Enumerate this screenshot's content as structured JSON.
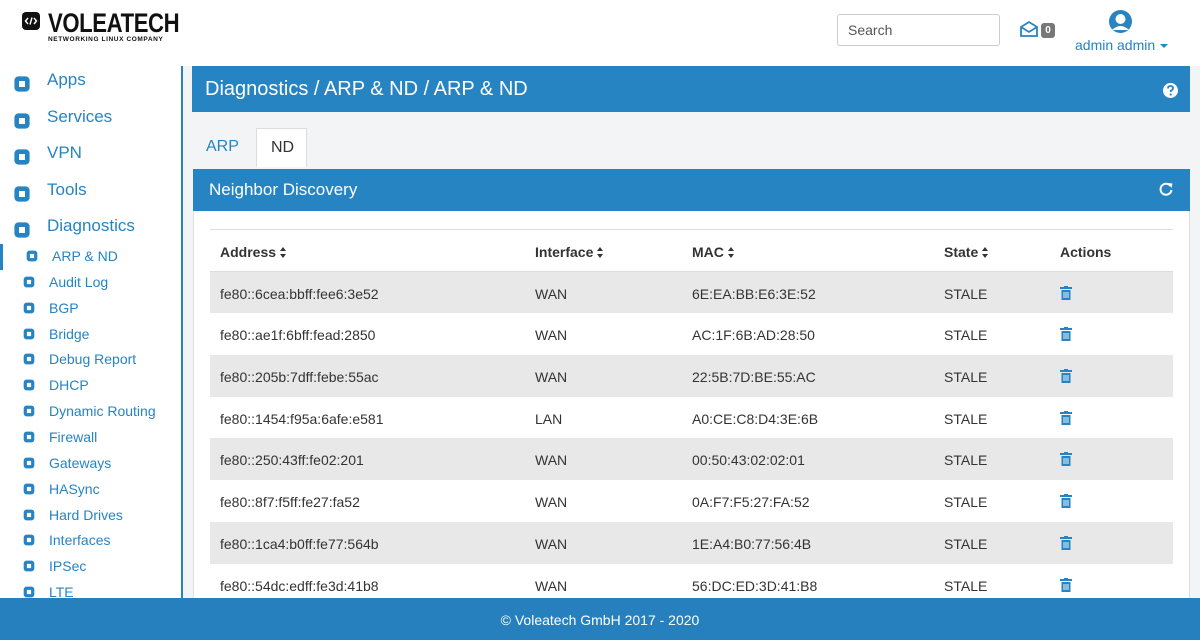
{
  "header": {
    "logo": "VOLEATECH",
    "tagline": "NETWORKING LINUX COMPANY",
    "search_placeholder": "Search",
    "mail_count": "0",
    "user": "admin admin"
  },
  "sidebar": {
    "menu": [
      "Apps",
      "Services",
      "VPN",
      "Tools",
      "Diagnostics"
    ],
    "submenu": [
      "ARP & ND",
      "Audit Log",
      "BGP",
      "Bridge",
      "Debug Report",
      "DHCP",
      "Dynamic Routing",
      "Firewall",
      "Gateways",
      "HASync",
      "Hard Drives",
      "Interfaces",
      "IPSec",
      "LTE"
    ]
  },
  "breadcrumb": "Diagnostics / ARP & ND / ARP & ND",
  "tabs": [
    "ARP",
    "ND"
  ],
  "panel": {
    "title": "Neighbor Discovery",
    "table": {
      "columns": [
        "Address",
        "Interface",
        "MAC",
        "State",
        "Actions"
      ],
      "rows": [
        [
          "fe80::6cea:bbff:fee6:3e52",
          "WAN",
          "6E:EA:BB:E6:3E:52",
          "STALE"
        ],
        [
          "fe80::ae1f:6bff:fead:2850",
          "WAN",
          "AC:1F:6B:AD:28:50",
          "STALE"
        ],
        [
          "fe80::205b:7dff:febe:55ac",
          "WAN",
          "22:5B:7D:BE:55:AC",
          "STALE"
        ],
        [
          "fe80::1454:f95a:6afe:e581",
          "LAN",
          "A0:CE:C8:D4:3E:6B",
          "STALE"
        ],
        [
          "fe80::250:43ff:fe02:201",
          "WAN",
          "00:50:43:02:02:01",
          "STALE"
        ],
        [
          "fe80::8f7:f5ff:fe27:fa52",
          "WAN",
          "0A:F7:F5:27:FA:52",
          "STALE"
        ],
        [
          "fe80::1ca4:b0ff:fe77:564b",
          "WAN",
          "1E:A4:B0:77:56:4B",
          "STALE"
        ],
        [
          "fe80::54dc:edff:fe3d:41b8",
          "WAN",
          "56:DC:ED:3D:41:B8",
          "STALE"
        ]
      ]
    }
  },
  "footer": "© Voleatech GmbH 2017 - 2020"
}
